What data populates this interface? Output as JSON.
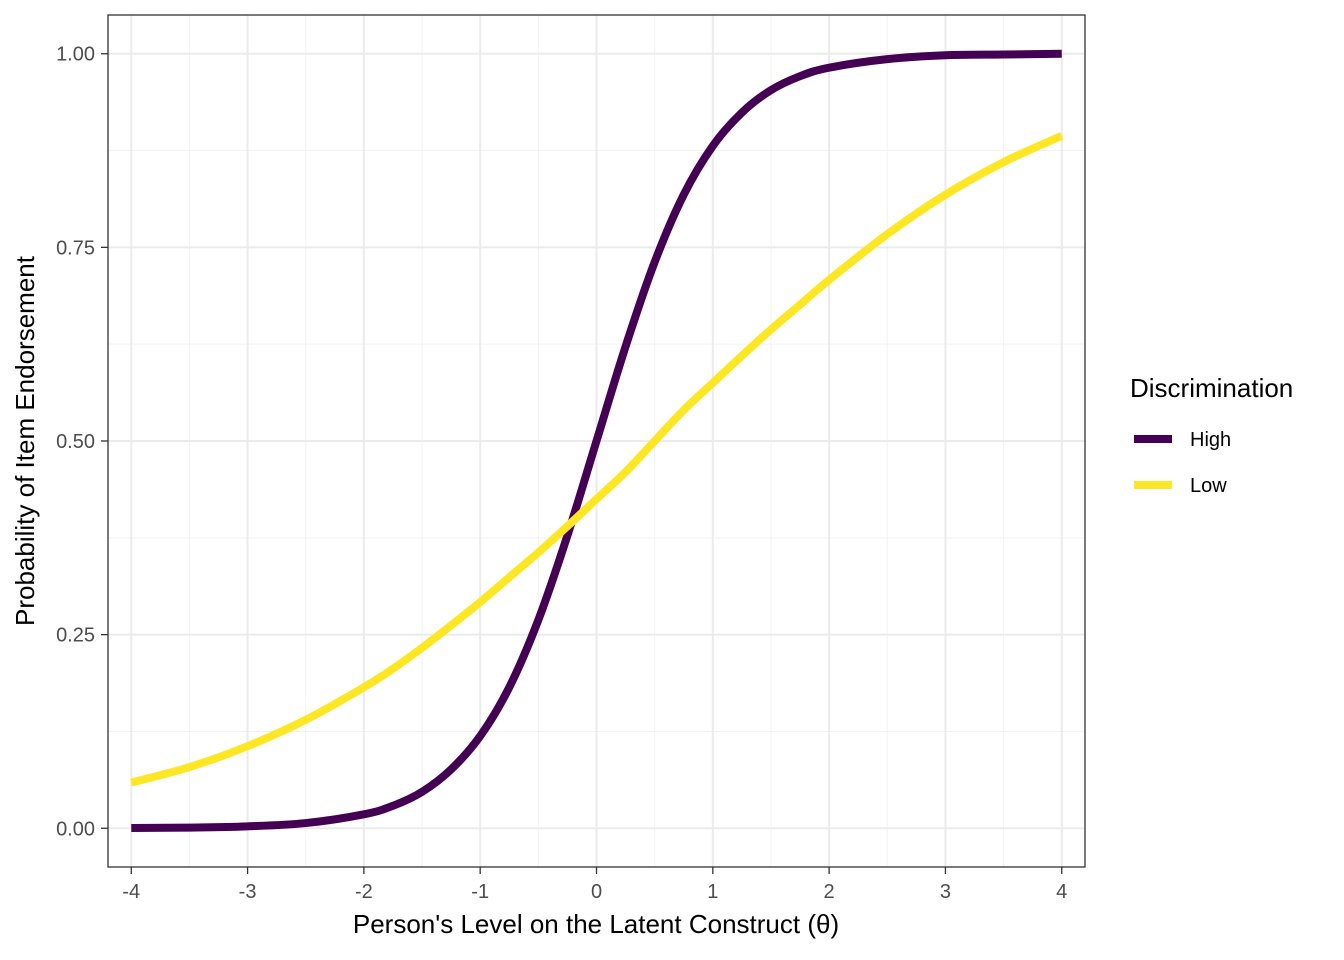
{
  "chart_data": {
    "type": "line",
    "xlabel": "Person's Level on the Latent Construct (θ)",
    "ylabel": "Probability of Item Endorsement",
    "xlim": [
      -4.2,
      4.2
    ],
    "ylim": [
      -0.05,
      1.05
    ],
    "x_ticks": [
      -4,
      -3,
      -2,
      -1,
      0,
      1,
      2,
      3,
      4
    ],
    "x_tick_labels": [
      "-4",
      "-3",
      "-2",
      "-1",
      "0",
      "1",
      "2",
      "3",
      "4"
    ],
    "y_ticks": [
      0,
      0.25,
      0.5,
      0.75,
      1
    ],
    "y_tick_labels": [
      "0.00",
      "0.25",
      "0.50",
      "0.75",
      "1.00"
    ],
    "grid": true,
    "legend": {
      "title": "Discrimination",
      "position": "right"
    },
    "x": [
      -4,
      -3.5,
      -3,
      -2.5,
      -2,
      -1.75,
      -1.5,
      -1.25,
      -1,
      -0.75,
      -0.5,
      -0.25,
      0,
      0.25,
      0.5,
      0.75,
      1,
      1.25,
      1.5,
      1.75,
      2,
      2.5,
      3,
      3.5,
      4
    ],
    "series": [
      {
        "name": "High",
        "color": "#440154",
        "values": [
          0.0003,
          0.0009,
          0.0025,
          0.0067,
          0.018,
          0.029,
          0.047,
          0.076,
          0.119,
          0.182,
          0.269,
          0.378,
          0.5,
          0.622,
          0.731,
          0.818,
          0.881,
          0.924,
          0.953,
          0.971,
          0.982,
          0.993,
          0.998,
          0.999,
          1.0
        ]
      },
      {
        "name": "Low",
        "color": "#FDE725",
        "values": [
          0.059,
          0.079,
          0.106,
          0.14,
          0.182,
          0.206,
          0.233,
          0.262,
          0.292,
          0.324,
          0.356,
          0.39,
          0.425,
          0.46,
          0.5,
          0.54,
          0.575,
          0.61,
          0.644,
          0.676,
          0.708,
          0.767,
          0.818,
          0.86,
          0.894
        ]
      }
    ]
  }
}
